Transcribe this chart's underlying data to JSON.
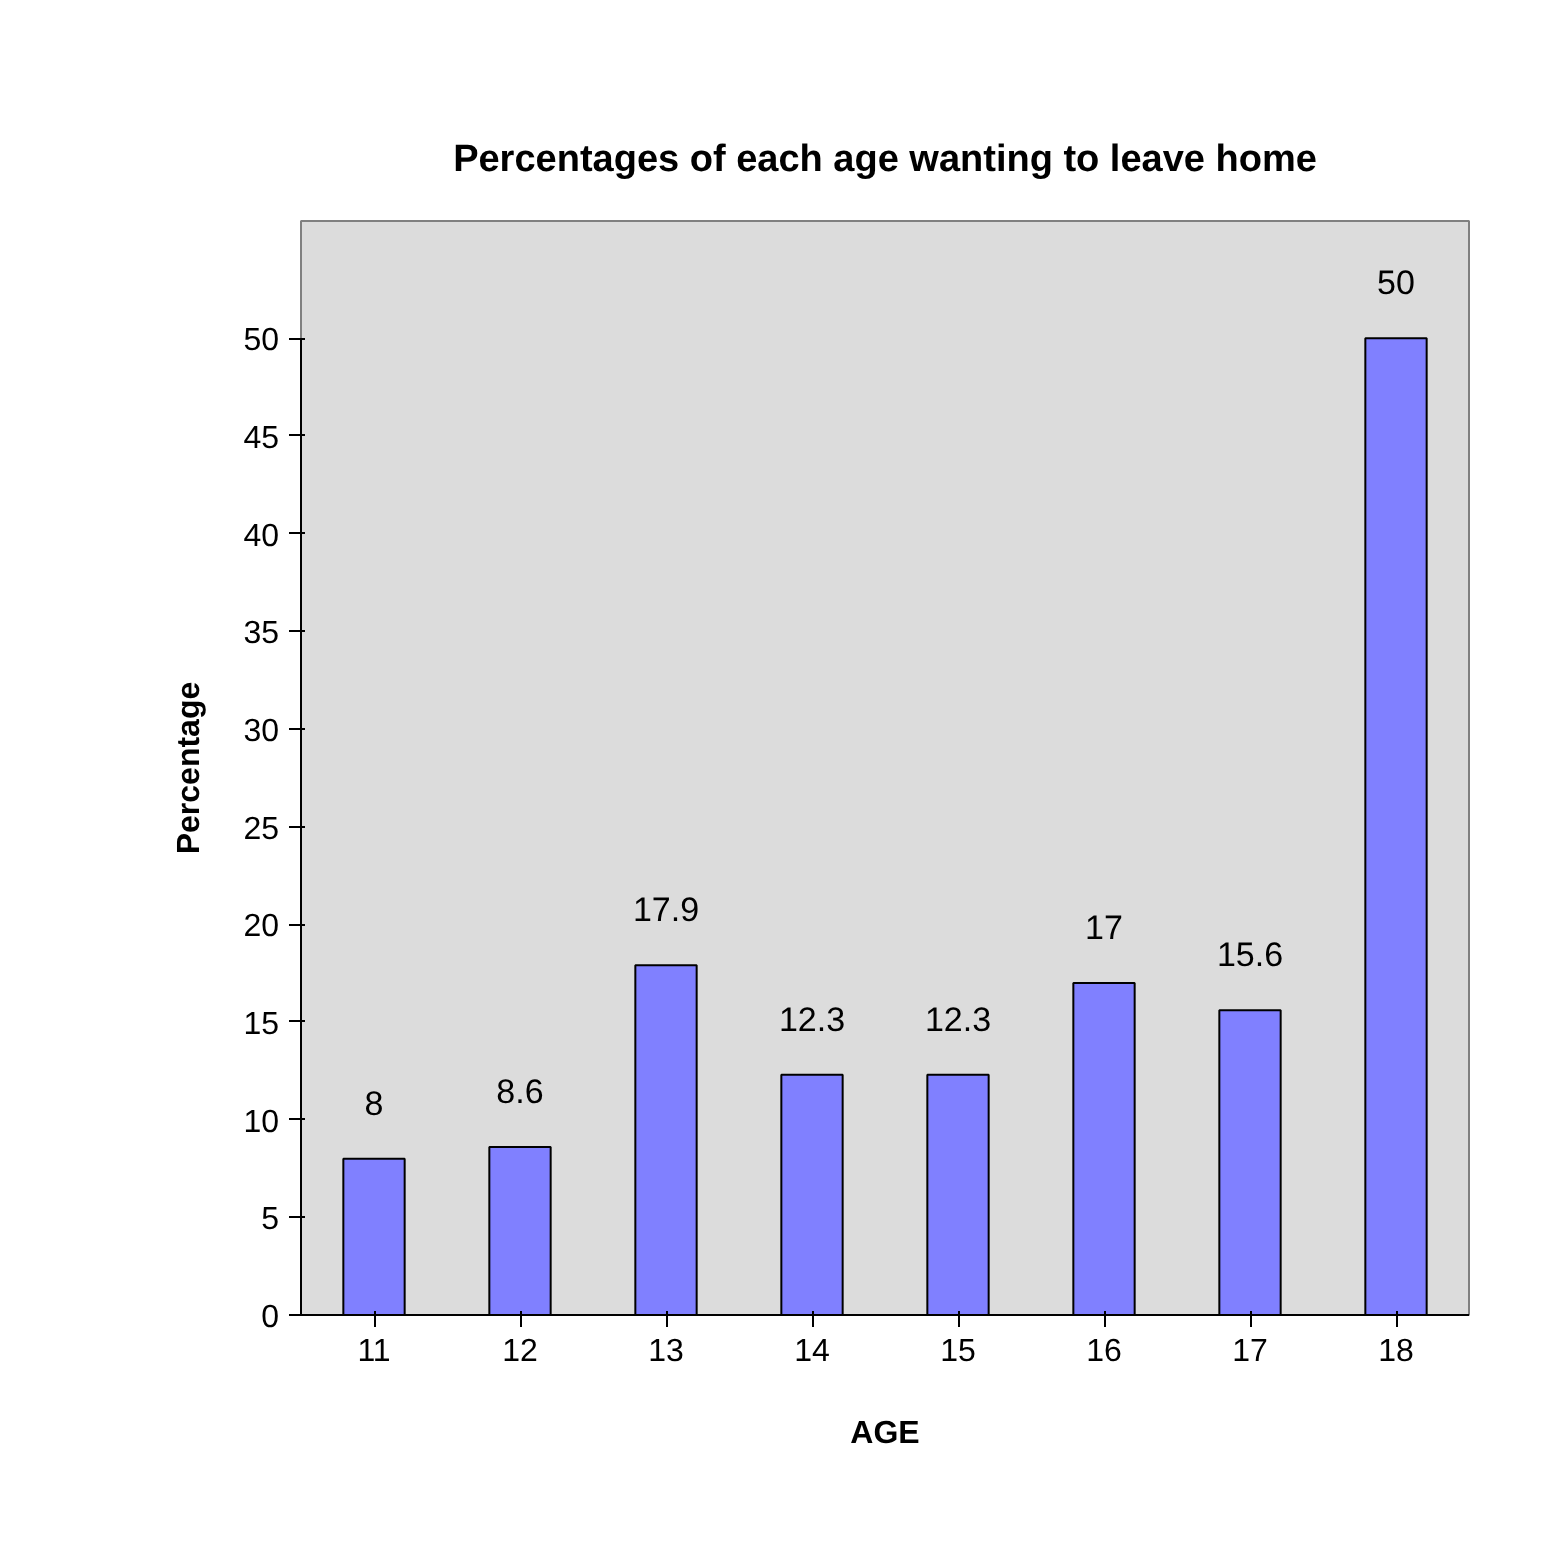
{
  "chart_data": {
    "type": "bar",
    "title": "Percentages of each age wanting to leave home",
    "xlabel": "AGE",
    "ylabel": "Percentage",
    "categories": [
      "11",
      "12",
      "13",
      "14",
      "15",
      "16",
      "17",
      "18"
    ],
    "values": [
      8,
      8.6,
      17.9,
      12.3,
      12.3,
      17,
      15.6,
      50
    ],
    "color": "#8080ff",
    "ylim": [
      0,
      50
    ],
    "yticks": [
      0,
      5,
      10,
      15,
      20,
      25,
      30,
      35,
      40,
      45,
      50
    ],
    "grid": false,
    "data_labels": true
  }
}
